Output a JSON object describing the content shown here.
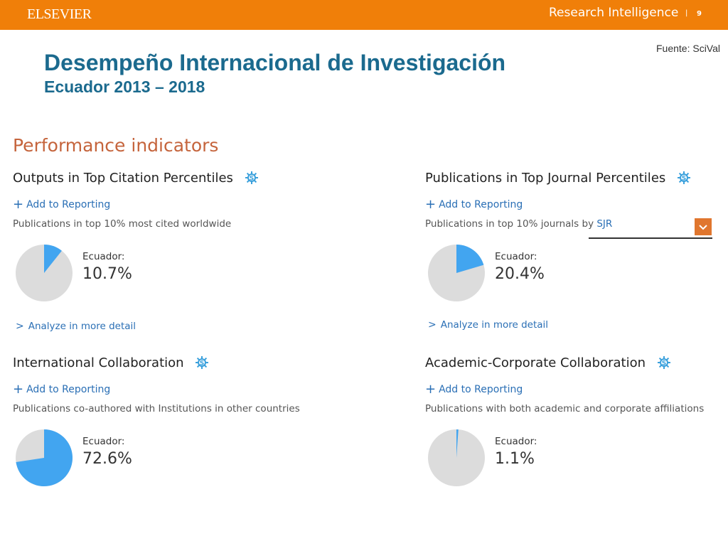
{
  "header": {
    "brand": "ELSEVIER",
    "product": "Research Intelligence",
    "separator": "|",
    "page_number": "9",
    "bar_color": "#f07f09"
  },
  "source": "Fuente: SciVal",
  "title": "Desempeño Internacional de Investigación",
  "subtitle": "Ecuador 2013 – 2018",
  "section_title": "Performance indicators",
  "colors": {
    "slice": "#42a5f0",
    "rest": "#dcdcdc",
    "link": "#2a6fb5"
  },
  "panels": [
    {
      "title": "Outputs in Top Citation Percentiles",
      "add_label": "Add to Reporting",
      "description": "Publications in top 10% most cited worldwide",
      "country_label": "Ecuador:",
      "value_text": "10.7%",
      "value": 10.7,
      "analyze_label": "Analyze in more detail"
    },
    {
      "title": "Publications in Top Journal Percentiles",
      "add_label": "Add to Reporting",
      "description": "Publications in top 10% journals by",
      "description_link": "SJR",
      "country_label": "Ecuador:",
      "value_text": "20.4%",
      "value": 20.4,
      "analyze_label": "Analyze in more detail"
    },
    {
      "title": "International Collaboration",
      "add_label": "Add to Reporting",
      "description": "Publications co-authored with Institutions in other countries",
      "country_label": "Ecuador:",
      "value_text": "72.6%",
      "value": 72.6
    },
    {
      "title": "Academic-Corporate Collaboration",
      "add_label": "Add to Reporting",
      "description": "Publications with both academic and corporate affiliations",
      "country_label": "Ecuador:",
      "value_text": "1.1%",
      "value": 1.1
    }
  ]
}
